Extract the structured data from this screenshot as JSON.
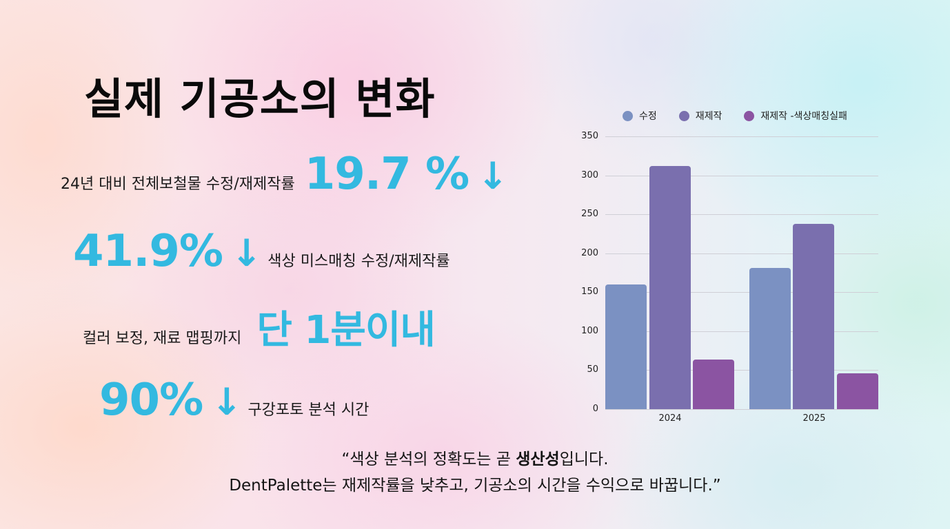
{
  "slide": {
    "title": "실제 기공소의 변화",
    "stats": [
      {
        "label": "24년 대비 전체보철물 수정/재제작률",
        "value": "19.7 %",
        "arrow": "↓"
      },
      {
        "value": "41.9%",
        "arrow": "↓",
        "label": "색상 미스매칭 수정/재제작률"
      },
      {
        "label": "컬러 보정, 재료 맵핑까지",
        "value": "단 1분이내"
      },
      {
        "value": "90%",
        "arrow": "↓",
        "label": "구강포토 분석 시간"
      }
    ],
    "quote": {
      "line1_prefix": "“색상 분석의 정확도는 곧 ",
      "line1_bold": "생산성",
      "line1_suffix": "입니다.",
      "line2": "DentPalette는 재제작률을 낮추고, 기공소의 시간을 수익으로 바꿉니다.”"
    },
    "accent_color": "#33b9e0"
  },
  "chart_data": {
    "type": "bar",
    "title": "",
    "xlabel": "",
    "ylabel": "",
    "categories": [
      "2024",
      "2025"
    ],
    "series": [
      {
        "name": "수정",
        "color": "#7b91c2",
        "values": [
          160,
          181
        ]
      },
      {
        "name": "재제작",
        "color": "#7a6fae",
        "values": [
          312,
          238
        ]
      },
      {
        "name": "재제작 -색상매칭실패",
        "color": "#8b54a2",
        "values": [
          64,
          46
        ]
      }
    ],
    "ylim": [
      0,
      350
    ],
    "yticks": [
      "350",
      "300",
      "250",
      "200",
      "150",
      "100",
      "50",
      "0"
    ],
    "grid": true,
    "legend_position": "top"
  }
}
